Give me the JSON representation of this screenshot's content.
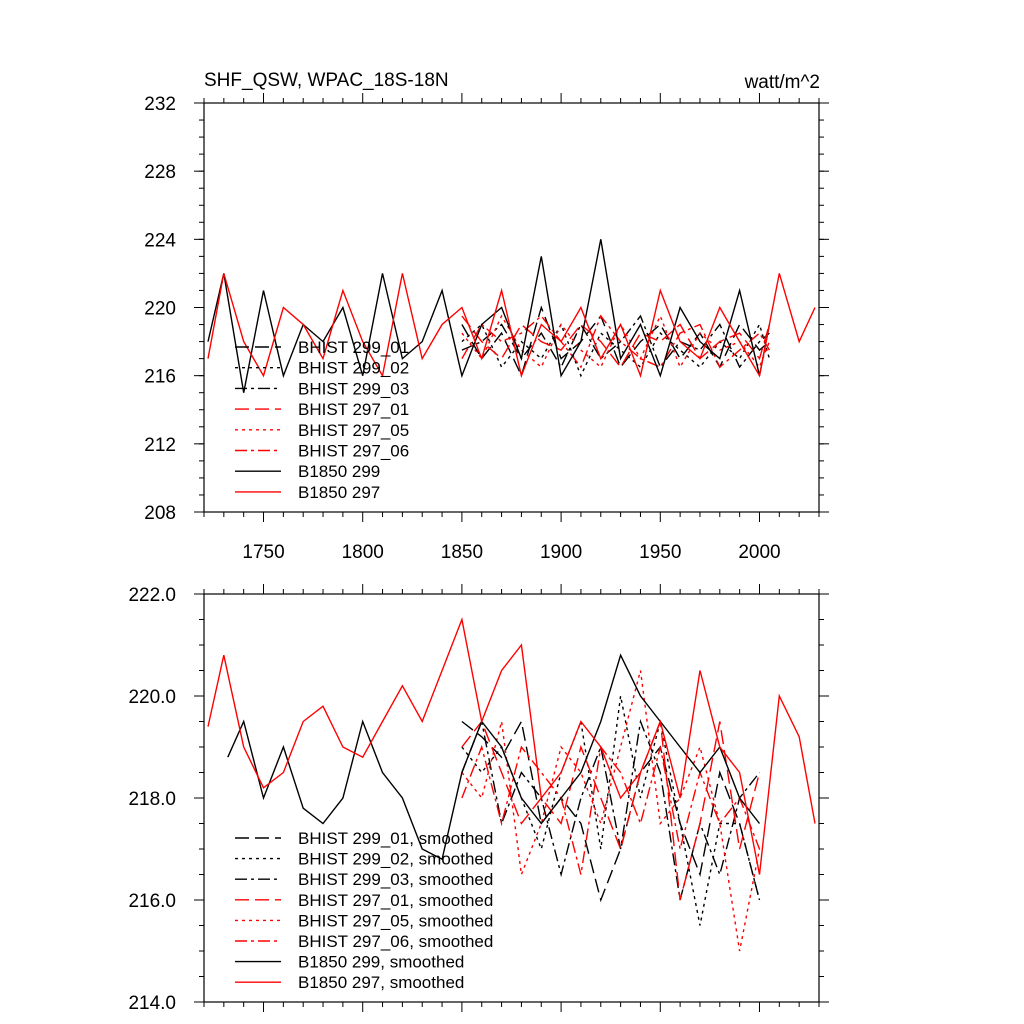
{
  "chart_data": [
    {
      "type": "line",
      "title_left": "SHF_QSW, WPAC_18S-18N",
      "title_right": "watt/m^2",
      "xlabel": "",
      "ylabel": "",
      "xlim": [
        1720,
        2030
      ],
      "ylim": [
        208,
        232
      ],
      "xticks": [
        1750,
        1800,
        1850,
        1900,
        1950,
        2000
      ],
      "yticks": [
        208,
        212,
        216,
        220,
        224,
        228,
        232
      ],
      "xtick_labels": [
        "1750",
        "1800",
        "1850",
        "1900",
        "1950",
        "2000"
      ],
      "ytick_labels": [
        "208",
        "212",
        "216",
        "220",
        "224",
        "228",
        "232"
      ],
      "legend": {
        "placement": "bottom-left",
        "entries": [
          {
            "label": "BHIST 299_01",
            "color": "#000000",
            "dash": "long-dash"
          },
          {
            "label": "BHIST 299_02",
            "color": "#000000",
            "dash": "dot"
          },
          {
            "label": "BHIST 299_03",
            "color": "#000000",
            "dash": "dash-dot"
          },
          {
            "label": "BHIST 297_01",
            "color": "#ff0000",
            "dash": "long-dash"
          },
          {
            "label": "BHIST 297_05",
            "color": "#ff0000",
            "dash": "dot"
          },
          {
            "label": "BHIST 297_06",
            "color": "#ff0000",
            "dash": "dash-dot"
          },
          {
            "label": "B1850 299",
            "color": "#000000",
            "dash": "solid"
          },
          {
            "label": "B1850 297",
            "color": "#ff0000",
            "dash": "solid"
          }
        ]
      },
      "series": [
        {
          "name": "BHIST 299_01",
          "color": "#000000",
          "dash": "long-dash",
          "x": [
            1850,
            1860,
            1870,
            1880,
            1890,
            1900,
            1910,
            1920,
            1930,
            1940,
            1950,
            1960,
            1970,
            1980,
            1990,
            2000,
            2005
          ],
          "y": [
            219,
            217,
            218.5,
            216,
            220,
            217,
            218,
            219.5,
            216.5,
            218,
            219,
            217,
            218.5,
            216.5,
            219,
            217.5,
            218
          ]
        },
        {
          "name": "BHIST 299_02",
          "color": "#000000",
          "dash": "dot",
          "x": [
            1850,
            1860,
            1870,
            1880,
            1890,
            1900,
            1910,
            1920,
            1930,
            1940,
            1950,
            1960,
            1970,
            1980,
            1990,
            2000,
            2005
          ],
          "y": [
            218,
            219,
            216.5,
            218,
            217,
            219,
            216,
            218.5,
            217.5,
            216.5,
            218.5,
            217.5,
            216.5,
            218,
            217,
            219,
            217
          ]
        },
        {
          "name": "BHIST 299_03",
          "color": "#000000",
          "dash": "dash-dot",
          "x": [
            1850,
            1860,
            1870,
            1880,
            1890,
            1900,
            1910,
            1920,
            1930,
            1940,
            1950,
            1960,
            1970,
            1980,
            1990,
            2000,
            2005
          ],
          "y": [
            217.5,
            218,
            219,
            217,
            218.5,
            216.5,
            219,
            217,
            218,
            219.5,
            216.5,
            218,
            217.5,
            219,
            216.5,
            218,
            218.5
          ]
        },
        {
          "name": "BHIST 297_01",
          "color": "#ff0000",
          "dash": "long-dash",
          "x": [
            1850,
            1860,
            1870,
            1880,
            1890,
            1900,
            1910,
            1920,
            1930,
            1940,
            1950,
            1960,
            1970,
            1980,
            1990,
            2000,
            2005
          ],
          "y": [
            219.5,
            218,
            217,
            219,
            218,
            217.5,
            219,
            218,
            216.5,
            218.5,
            218,
            219,
            217,
            218,
            218.5,
            217,
            219
          ]
        },
        {
          "name": "BHIST 297_05",
          "color": "#ff0000",
          "dash": "dot",
          "x": [
            1850,
            1860,
            1870,
            1880,
            1890,
            1900,
            1910,
            1920,
            1930,
            1940,
            1950,
            1960,
            1970,
            1980,
            1990,
            2000,
            2005
          ],
          "y": [
            218.5,
            217,
            219.5,
            217.5,
            216.5,
            219,
            217.5,
            216.5,
            219,
            217,
            219.5,
            216.5,
            218.5,
            217.5,
            218,
            216.5,
            218
          ]
        },
        {
          "name": "BHIST 297_06",
          "color": "#ff0000",
          "dash": "dash-dot",
          "x": [
            1850,
            1860,
            1870,
            1880,
            1890,
            1900,
            1910,
            1920,
            1930,
            1940,
            1950,
            1960,
            1970,
            1980,
            1990,
            2000,
            2005
          ],
          "y": [
            217,
            219,
            218,
            218.5,
            219.5,
            218,
            216.5,
            219.5,
            218,
            217,
            216.5,
            218.5,
            219,
            216.5,
            217.5,
            218.5,
            217.5
          ]
        },
        {
          "name": "B1850 299",
          "color": "#000000",
          "dash": "solid",
          "x": [
            1722,
            1730,
            1740,
            1750,
            1760,
            1770,
            1780,
            1790,
            1800,
            1810,
            1820,
            1830,
            1840,
            1850,
            1860,
            1870,
            1880,
            1890,
            1900,
            1910,
            1920,
            1930,
            1940,
            1950,
            1960,
            1970,
            1980,
            1990,
            2000,
            2005
          ],
          "y": [
            218,
            222,
            215,
            221,
            216,
            219,
            218,
            220,
            216,
            222,
            217,
            218,
            221,
            216,
            219,
            220,
            217,
            223,
            216,
            218,
            224,
            217,
            219,
            216,
            220,
            218,
            217,
            221,
            216,
            219
          ]
        },
        {
          "name": "B1850 297",
          "color": "#ff0000",
          "dash": "solid",
          "x": [
            1722,
            1730,
            1740,
            1750,
            1760,
            1770,
            1780,
            1790,
            1800,
            1810,
            1820,
            1830,
            1840,
            1850,
            1860,
            1870,
            1880,
            1890,
            1900,
            1910,
            1920,
            1930,
            1940,
            1950,
            1960,
            1970,
            1980,
            1990,
            2000,
            2010,
            2020,
            2028
          ],
          "y": [
            217,
            222,
            218,
            216,
            220,
            219,
            217,
            221,
            218,
            216,
            222,
            217,
            219,
            220,
            217,
            221,
            216,
            219,
            218,
            220,
            217,
            219,
            216,
            221,
            218,
            217,
            220,
            218,
            216,
            222,
            218,
            220
          ]
        }
      ]
    },
    {
      "type": "line",
      "xlim": [
        1720,
        2030
      ],
      "ylim": [
        214,
        222
      ],
      "xticks": [
        1750,
        1800,
        1850,
        1900,
        1950,
        2000
      ],
      "yticks": [
        214,
        216,
        218,
        220,
        222
      ],
      "ytick_labels": [
        "214.0",
        "216.0",
        "218.0",
        "220.0",
        "222.0"
      ],
      "legend": {
        "placement": "bottom-left",
        "entries": [
          {
            "label": "BHIST 299_01, smoothed",
            "color": "#000000",
            "dash": "long-dash"
          },
          {
            "label": "BHIST 299_02, smoothed",
            "color": "#000000",
            "dash": "dot"
          },
          {
            "label": "BHIST 299_03, smoothed",
            "color": "#000000",
            "dash": "dash-dot"
          },
          {
            "label": "BHIST 297_01, smoothed",
            "color": "#ff0000",
            "dash": "long-dash"
          },
          {
            "label": "BHIST 297_05, smoothed",
            "color": "#ff0000",
            "dash": "dot"
          },
          {
            "label": "BHIST 297_06, smoothed",
            "color": "#ff0000",
            "dash": "dash-dot"
          },
          {
            "label": "B1850 299, smoothed",
            "color": "#000000",
            "dash": "solid"
          },
          {
            "label": "B1850 297, smoothed",
            "color": "#ff0000",
            "dash": "solid"
          }
        ]
      },
      "series": [
        {
          "name": "BHIST 299_01, smoothed",
          "color": "#000000",
          "dash": "long-dash",
          "x": [
            1850,
            1860,
            1870,
            1880,
            1890,
            1900,
            1910,
            1920,
            1930,
            1940,
            1950,
            1960,
            1970,
            1980,
            1990,
            2000
          ],
          "y": [
            219.5,
            219.2,
            218.8,
            219.5,
            217.5,
            218.0,
            217.5,
            216.0,
            217.0,
            218.5,
            219.0,
            217.5,
            216.5,
            218.5,
            217.5,
            216.0
          ]
        },
        {
          "name": "BHIST 299_02, smoothed",
          "color": "#000000",
          "dash": "dot",
          "x": [
            1850,
            1860,
            1870,
            1880,
            1890,
            1900,
            1910,
            1920,
            1930,
            1940,
            1950,
            1960,
            1970,
            1980,
            1990,
            2000
          ],
          "y": [
            219.0,
            218.5,
            219.0,
            218.0,
            217.0,
            218.5,
            219.5,
            217.0,
            220.0,
            218.0,
            219.5,
            217.5,
            215.5,
            217.5,
            217.5,
            216.0
          ]
        },
        {
          "name": "BHIST 299_03, smoothed",
          "color": "#000000",
          "dash": "dash-dot",
          "x": [
            1850,
            1860,
            1870,
            1880,
            1890,
            1900,
            1910,
            1920,
            1930,
            1940,
            1950,
            1960,
            1970,
            1980,
            1990,
            2000
          ],
          "y": [
            218.5,
            219.5,
            217.5,
            218.5,
            218.0,
            216.5,
            218.0,
            219.0,
            217.0,
            219.5,
            218.5,
            216.0,
            217.5,
            216.5,
            218.0,
            218.5
          ]
        },
        {
          "name": "BHIST 297_01, smoothed",
          "color": "#ff0000",
          "dash": "long-dash",
          "x": [
            1850,
            1860,
            1870,
            1880,
            1890,
            1900,
            1910,
            1920,
            1930,
            1940,
            1950,
            1960,
            1970,
            1980,
            1990,
            2000
          ],
          "y": [
            219.0,
            219.5,
            218.5,
            217.5,
            218.0,
            217.5,
            219.0,
            218.0,
            217.0,
            218.5,
            219.5,
            216.0,
            217.5,
            219.5,
            217.0,
            218.5
          ]
        },
        {
          "name": "BHIST 297_05, smoothed",
          "color": "#ff0000",
          "dash": "dot",
          "x": [
            1850,
            1860,
            1870,
            1880,
            1890,
            1900,
            1910,
            1920,
            1930,
            1940,
            1950,
            1960,
            1970,
            1980,
            1990,
            2000
          ],
          "y": [
            218.5,
            218.0,
            219.5,
            216.5,
            217.5,
            219.0,
            218.5,
            217.5,
            219.0,
            220.5,
            217.5,
            218.0,
            219.0,
            217.5,
            215.0,
            217.0
          ]
        },
        {
          "name": "BHIST 297_06, smoothed",
          "color": "#ff0000",
          "dash": "dash-dot",
          "x": [
            1850,
            1860,
            1870,
            1880,
            1890,
            1900,
            1910,
            1920,
            1930,
            1940,
            1950,
            1960,
            1970,
            1980,
            1990,
            2000
          ],
          "y": [
            218.0,
            219.0,
            217.5,
            219.0,
            218.5,
            218.0,
            216.5,
            219.0,
            218.5,
            217.5,
            219.0,
            217.0,
            218.5,
            217.5,
            218.0,
            217.0
          ]
        },
        {
          "name": "B1850 299, smoothed",
          "color": "#000000",
          "dash": "solid",
          "x": [
            1732,
            1740,
            1750,
            1760,
            1770,
            1780,
            1790,
            1800,
            1810,
            1820,
            1830,
            1840,
            1850,
            1860,
            1870,
            1880,
            1890,
            1900,
            1910,
            1920,
            1930,
            1940,
            1950,
            1960,
            1970,
            1980,
            1990,
            2000
          ],
          "y": [
            218.8,
            219.5,
            218.0,
            219.0,
            217.8,
            217.5,
            218.0,
            219.5,
            218.5,
            218.0,
            217.0,
            216.8,
            218.5,
            219.5,
            219.0,
            218.0,
            217.5,
            218.0,
            218.5,
            219.5,
            220.8,
            220.0,
            219.5,
            219.0,
            218.5,
            219.0,
            218.0,
            217.5
          ]
        },
        {
          "name": "B1850 297, smoothed",
          "color": "#ff0000",
          "dash": "solid",
          "x": [
            1722,
            1730,
            1740,
            1750,
            1760,
            1770,
            1780,
            1790,
            1800,
            1810,
            1820,
            1830,
            1840,
            1850,
            1860,
            1870,
            1880,
            1890,
            1900,
            1910,
            1920,
            1930,
            1940,
            1950,
            1960,
            1970,
            1980,
            1990,
            2000,
            2010,
            2020,
            2028
          ],
          "y": [
            219.4,
            220.8,
            219.0,
            218.2,
            218.5,
            219.5,
            219.8,
            219.0,
            218.8,
            219.5,
            220.2,
            219.5,
            220.5,
            221.5,
            219.5,
            220.5,
            221.0,
            218.0,
            218.5,
            219.5,
            219.0,
            218.0,
            218.5,
            219.5,
            218.0,
            220.5,
            219.0,
            218.5,
            216.5,
            220.0,
            219.2,
            217.5
          ]
        }
      ]
    }
  ]
}
